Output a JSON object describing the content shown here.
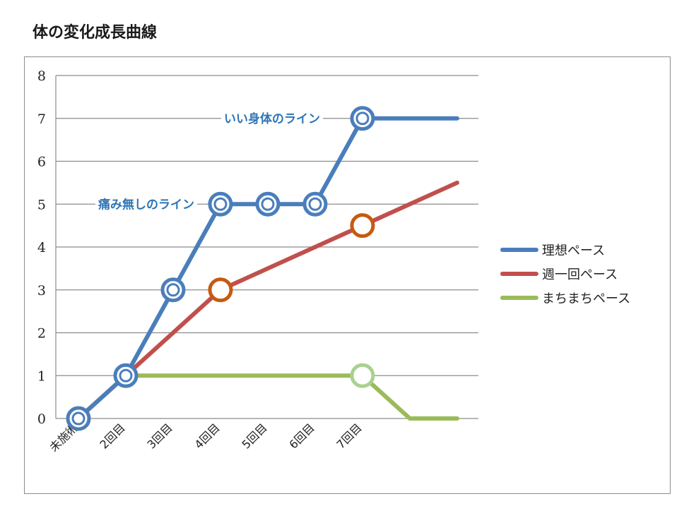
{
  "page": {
    "title": "体の変化成長曲線"
  },
  "chart_data": {
    "type": "line",
    "title": "",
    "xlabel": "",
    "ylabel": "",
    "categories": [
      "未施術",
      "2回目",
      "3回目",
      "4回目",
      "5回目",
      "6回目",
      "7回目",
      "",
      ""
    ],
    "ylim": [
      0,
      8
    ],
    "yticks": [
      0,
      1,
      2,
      3,
      4,
      5,
      6,
      7,
      8
    ],
    "grid": true,
    "legend_position": "right",
    "series": [
      {
        "name": "理想ペース",
        "color": "#4a7ebb",
        "values": [
          0,
          1,
          3,
          5,
          5,
          5,
          7,
          7,
          7
        ],
        "markers": [
          true,
          true,
          true,
          true,
          true,
          true,
          true,
          false,
          false
        ]
      },
      {
        "name": "週一回ペース",
        "color": "#c0504d",
        "marker_color": "#c55a11",
        "values": [
          0,
          1,
          2,
          3,
          3.5,
          4,
          4.5,
          5,
          5.5
        ],
        "markers": [
          false,
          false,
          false,
          true,
          false,
          false,
          true,
          false,
          false
        ]
      },
      {
        "name": "まちまちペース",
        "color": "#9bbb59",
        "marker_color": "#a9d18e",
        "values": [
          0,
          1,
          1,
          1,
          1,
          1,
          1,
          0,
          0
        ],
        "markers": [
          false,
          false,
          false,
          false,
          false,
          false,
          true,
          false,
          false
        ]
      }
    ],
    "annotations": [
      {
        "text": "いい身体のライン",
        "y": 7,
        "color": "#2e75b6"
      },
      {
        "text": "痛み無しのライン",
        "y": 5,
        "color": "#2e75b6"
      }
    ]
  }
}
